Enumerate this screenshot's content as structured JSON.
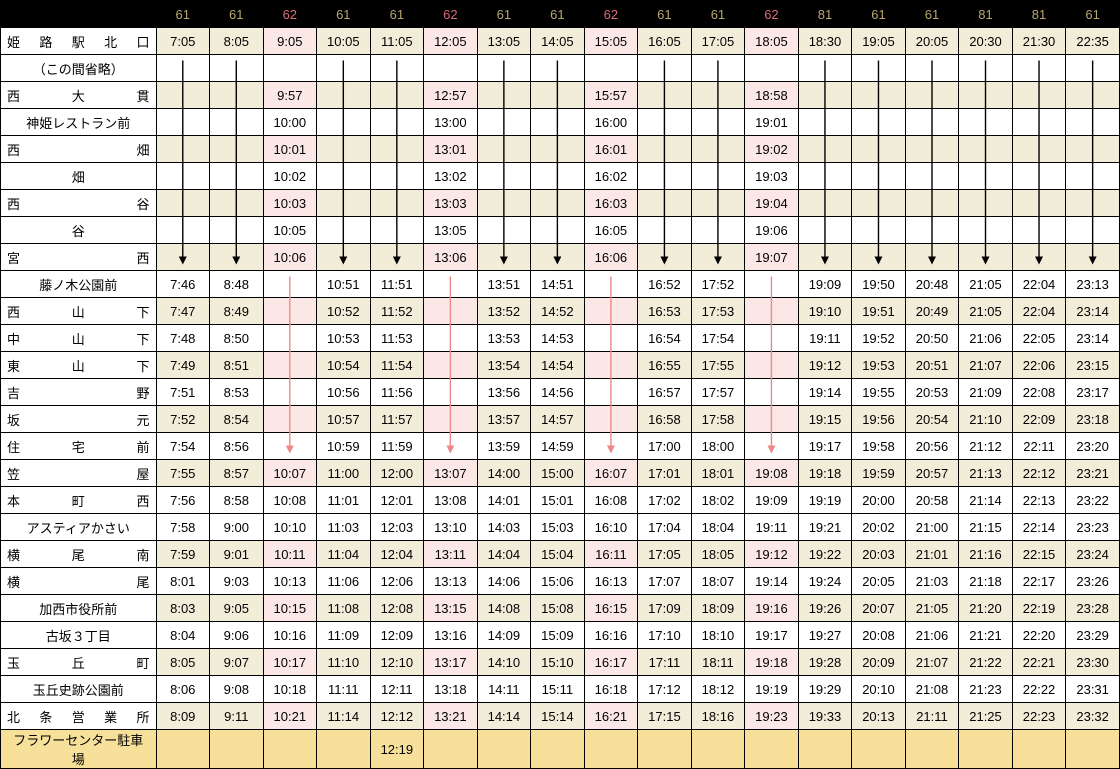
{
  "routes": [
    "61",
    "61",
    "62",
    "61",
    "61",
    "62",
    "61",
    "61",
    "62",
    "61",
    "61",
    "62",
    "81",
    "61",
    "61",
    "81",
    "81",
    "61"
  ],
  "route62_cols": [
    2,
    5,
    8,
    11
  ],
  "stops": [
    "姫路駅北口",
    "（この間省略）",
    "西大貫",
    "神姫レストラン前",
    "西畑",
    "畑",
    "西谷",
    "谷",
    "宮西",
    "藤ノ木公園前",
    "西山下",
    "中山下",
    "東山下",
    "吉野",
    "坂元",
    "住宅前",
    "笠屋",
    "本町西",
    "アスティアかさい",
    "横尾南",
    "横尾",
    "加西市役所前",
    "古坂３丁目",
    "玉丘町",
    "玉丘史跡公園前",
    "北条営業所",
    "フラワーセンター駐車場"
  ],
  "justify": [
    3,
    0,
    3,
    0,
    2,
    1,
    2,
    1,
    2,
    0,
    3,
    3,
    3,
    2,
    2,
    3,
    2,
    3,
    0,
    3,
    2,
    0,
    0,
    3,
    0,
    5,
    0
  ],
  "alt_rows": [
    0,
    2,
    4,
    6,
    8,
    10,
    12,
    14,
    16,
    19,
    21,
    23,
    25
  ],
  "last_row": 26,
  "times": [
    [
      "7:05",
      "8:05",
      "9:05",
      "10:05",
      "11:05",
      "12:05",
      "13:05",
      "14:05",
      "15:05",
      "16:05",
      "17:05",
      "18:05",
      "18:30",
      "19:05",
      "20:05",
      "20:30",
      "21:30",
      "22:35"
    ],
    [
      "",
      "",
      "",
      "",
      "",
      "",
      "",
      "",
      "",
      "",
      "",
      "",
      "",
      "",
      "",
      "",
      "",
      ""
    ],
    [
      "",
      "",
      "9:57",
      "",
      "",
      "12:57",
      "",
      "",
      "15:57",
      "",
      "",
      "18:58",
      "",
      "",
      "",
      "",
      "",
      ""
    ],
    [
      "",
      "",
      "10:00",
      "",
      "",
      "13:00",
      "",
      "",
      "16:00",
      "",
      "",
      "19:01",
      "",
      "",
      "",
      "",
      "",
      ""
    ],
    [
      "",
      "",
      "10:01",
      "",
      "",
      "13:01",
      "",
      "",
      "16:01",
      "",
      "",
      "19:02",
      "",
      "",
      "",
      "",
      "",
      ""
    ],
    [
      "",
      "",
      "10:02",
      "",
      "",
      "13:02",
      "",
      "",
      "16:02",
      "",
      "",
      "19:03",
      "",
      "",
      "",
      "",
      "",
      ""
    ],
    [
      "",
      "",
      "10:03",
      "",
      "",
      "13:03",
      "",
      "",
      "16:03",
      "",
      "",
      "19:04",
      "",
      "",
      "",
      "",
      "",
      ""
    ],
    [
      "",
      "",
      "10:05",
      "",
      "",
      "13:05",
      "",
      "",
      "16:05",
      "",
      "",
      "19:06",
      "",
      "",
      "",
      "",
      "",
      ""
    ],
    [
      "",
      "",
      "10:06",
      "",
      "",
      "13:06",
      "",
      "",
      "16:06",
      "",
      "",
      "19:07",
      "",
      "",
      "",
      "",
      "",
      ""
    ],
    [
      "7:46",
      "8:48",
      "",
      "10:51",
      "11:51",
      "",
      "13:51",
      "14:51",
      "",
      "16:52",
      "17:52",
      "",
      "19:09",
      "19:50",
      "20:48",
      "21:05",
      "22:04",
      "23:13"
    ],
    [
      "7:47",
      "8:49",
      "",
      "10:52",
      "11:52",
      "",
      "13:52",
      "14:52",
      "",
      "16:53",
      "17:53",
      "",
      "19:10",
      "19:51",
      "20:49",
      "21:05",
      "22:04",
      "23:14"
    ],
    [
      "7:48",
      "8:50",
      "",
      "10:53",
      "11:53",
      "",
      "13:53",
      "14:53",
      "",
      "16:54",
      "17:54",
      "",
      "19:11",
      "19:52",
      "20:50",
      "21:06",
      "22:05",
      "23:14"
    ],
    [
      "7:49",
      "8:51",
      "",
      "10:54",
      "11:54",
      "",
      "13:54",
      "14:54",
      "",
      "16:55",
      "17:55",
      "",
      "19:12",
      "19:53",
      "20:51",
      "21:07",
      "22:06",
      "23:15"
    ],
    [
      "7:51",
      "8:53",
      "",
      "10:56",
      "11:56",
      "",
      "13:56",
      "14:56",
      "",
      "16:57",
      "17:57",
      "",
      "19:14",
      "19:55",
      "20:53",
      "21:09",
      "22:08",
      "23:17"
    ],
    [
      "7:52",
      "8:54",
      "",
      "10:57",
      "11:57",
      "",
      "13:57",
      "14:57",
      "",
      "16:58",
      "17:58",
      "",
      "19:15",
      "19:56",
      "20:54",
      "21:10",
      "22:09",
      "23:18"
    ],
    [
      "7:54",
      "8:56",
      "",
      "10:59",
      "11:59",
      "",
      "13:59",
      "14:59",
      "",
      "17:00",
      "18:00",
      "",
      "19:17",
      "19:58",
      "20:56",
      "21:12",
      "22:11",
      "23:20"
    ],
    [
      "7:55",
      "8:57",
      "10:07",
      "11:00",
      "12:00",
      "13:07",
      "14:00",
      "15:00",
      "16:07",
      "17:01",
      "18:01",
      "19:08",
      "19:18",
      "19:59",
      "20:57",
      "21:13",
      "22:12",
      "23:21"
    ],
    [
      "7:56",
      "8:58",
      "10:08",
      "11:01",
      "12:01",
      "13:08",
      "14:01",
      "15:01",
      "16:08",
      "17:02",
      "18:02",
      "19:09",
      "19:19",
      "20:00",
      "20:58",
      "21:14",
      "22:13",
      "23:22"
    ],
    [
      "7:58",
      "9:00",
      "10:10",
      "11:03",
      "12:03",
      "13:10",
      "14:03",
      "15:03",
      "16:10",
      "17:04",
      "18:04",
      "19:11",
      "19:21",
      "20:02",
      "21:00",
      "21:15",
      "22:14",
      "23:23"
    ],
    [
      "7:59",
      "9:01",
      "10:11",
      "11:04",
      "12:04",
      "13:11",
      "14:04",
      "15:04",
      "16:11",
      "17:05",
      "18:05",
      "19:12",
      "19:22",
      "20:03",
      "21:01",
      "21:16",
      "22:15",
      "23:24"
    ],
    [
      "8:01",
      "9:03",
      "10:13",
      "11:06",
      "12:06",
      "13:13",
      "14:06",
      "15:06",
      "16:13",
      "17:07",
      "18:07",
      "19:14",
      "19:24",
      "20:05",
      "21:03",
      "21:18",
      "22:17",
      "23:26"
    ],
    [
      "8:03",
      "9:05",
      "10:15",
      "11:08",
      "12:08",
      "13:15",
      "14:08",
      "15:08",
      "16:15",
      "17:09",
      "18:09",
      "19:16",
      "19:26",
      "20:07",
      "21:05",
      "21:20",
      "22:19",
      "23:28"
    ],
    [
      "8:04",
      "9:06",
      "10:16",
      "11:09",
      "12:09",
      "13:16",
      "14:09",
      "15:09",
      "16:16",
      "17:10",
      "18:10",
      "19:17",
      "19:27",
      "20:08",
      "21:06",
      "21:21",
      "22:20",
      "23:29"
    ],
    [
      "8:05",
      "9:07",
      "10:17",
      "11:10",
      "12:10",
      "13:17",
      "14:10",
      "15:10",
      "16:17",
      "17:11",
      "18:11",
      "19:18",
      "19:28",
      "20:09",
      "21:07",
      "21:22",
      "22:21",
      "23:30"
    ],
    [
      "8:06",
      "9:08",
      "10:18",
      "11:11",
      "12:11",
      "13:18",
      "14:11",
      "15:11",
      "16:18",
      "17:12",
      "18:12",
      "19:19",
      "19:29",
      "20:10",
      "21:08",
      "21:23",
      "22:22",
      "23:31"
    ],
    [
      "8:09",
      "9:11",
      "10:21",
      "11:14",
      "12:12",
      "13:21",
      "14:14",
      "15:14",
      "16:21",
      "17:15",
      "18:16",
      "19:23",
      "19:33",
      "20:13",
      "21:11",
      "21:25",
      "22:23",
      "23:32"
    ],
    [
      "",
      "",
      "",
      "",
      "12:19",
      "",
      "",
      "",
      "",
      "",
      "",
      "",
      "",
      "",
      "",
      "",
      "",
      ""
    ]
  ],
  "arrows_black": {
    "cols": [
      0,
      1,
      3,
      4,
      6,
      7,
      9,
      10,
      12,
      13,
      14,
      15,
      16,
      17
    ],
    "from": 1,
    "to": 8
  },
  "arrows_pink": {
    "cols": [
      2,
      5,
      8,
      11
    ],
    "from": 9,
    "to": 15
  }
}
